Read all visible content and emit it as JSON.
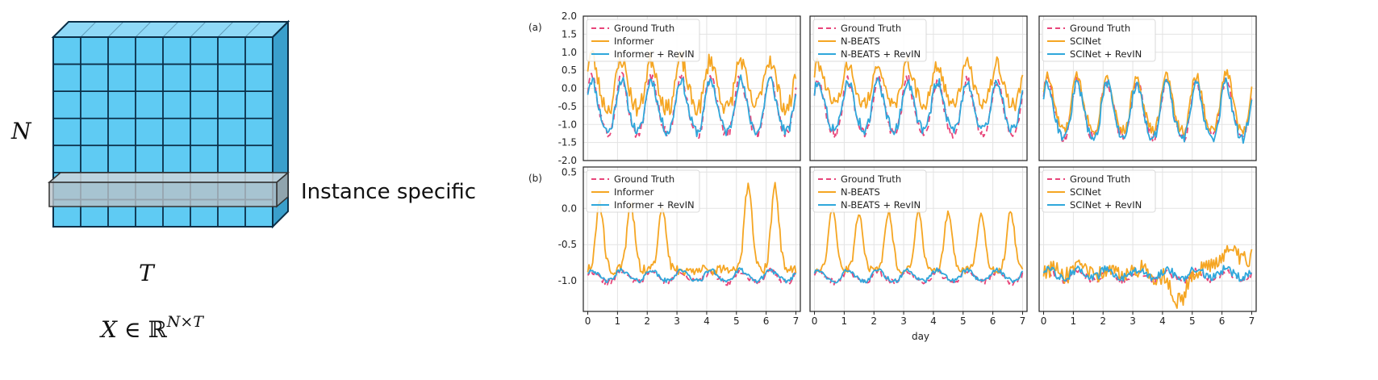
{
  "illustration": {
    "n_label": "N",
    "t_label": "T",
    "highlight_label": "Instance specific",
    "formula_x": "X ∈ ",
    "formula_r": "ℝ",
    "formula_sup": "N×T",
    "colors": {
      "front": "#5fcbf3",
      "top": "#8fd9f7",
      "side": "#3a9fcc",
      "grid": "#0b2f48",
      "slab": "#b9c2c8"
    }
  },
  "chart_data": {
    "type": "line",
    "xlabel": "day",
    "colors": {
      "ground_truth": "#e8457a",
      "model": "#f5a623",
      "revin": "#2fa7db"
    },
    "rows": [
      {
        "panel_label": "(a)",
        "ylim": [
          -2.0,
          2.0
        ],
        "yticks": [
          2.0,
          1.5,
          1.0,
          0.5,
          0.0,
          -0.5,
          -1.0,
          -1.5,
          -2.0
        ],
        "ytick_labels": [
          "2.0",
          "1.5",
          "1.0",
          "0.5",
          "0.0",
          "-0.5",
          "-1.0",
          "-1.5",
          "-2.0"
        ],
        "panels": [
          {
            "legend": [
              "Ground Truth",
              "Informer",
              "Informer + RevIN"
            ],
            "ground_truth": {
              "base": -0.55,
              "amp": 1.05,
              "noise": 0.15
            },
            "model": {
              "base": 0.05,
              "amp": 0.9,
              "noise": 0.25,
              "peaks": [
                [
                  5.85,
                  1.1
                ],
                [
                  0.1,
                  0.9
                ]
              ]
            },
            "revin": {
              "base": -0.55,
              "amp": 0.95,
              "noise": 0.15
            }
          },
          {
            "legend": [
              "Ground Truth",
              "N-BEATS",
              "N-BEATS + RevIN"
            ],
            "ground_truth": {
              "base": -0.6,
              "amp": 1.0,
              "noise": 0.15
            },
            "model": {
              "base": 0.05,
              "amp": 0.75,
              "noise": 0.2,
              "peaks": []
            },
            "revin": {
              "base": -0.55,
              "amp": 0.9,
              "noise": 0.15
            }
          },
          {
            "legend": [
              "Ground Truth",
              "SCINet",
              "SCINet + RevIN"
            ],
            "ground_truth": {
              "base": -0.65,
              "amp": 1.05,
              "noise": 0.15
            },
            "model": {
              "base": -0.5,
              "amp": 1.0,
              "noise": 0.15,
              "peaks": [
                [
                  6.3,
                  0.55
                ]
              ]
            },
            "revin": {
              "base": -0.7,
              "amp": 1.0,
              "noise": 0.15
            }
          }
        ]
      },
      {
        "panel_label": "(b)",
        "ylim": [
          -1.42,
          0.57
        ],
        "yticks": [
          0.5,
          0.0,
          -0.5,
          -1.0
        ],
        "ytick_labels": [
          "0.5",
          "0.0",
          "-0.5",
          "-1.0"
        ],
        "panels": [
          {
            "legend": [
              "Ground Truth",
              "Informer",
              "Informer + RevIN"
            ],
            "ground_truth": {
              "base": -0.95,
              "amp": 0.1,
              "noise": 0.04
            },
            "model": {
              "spiky": true,
              "peaks": [
                [
                  0.4,
                  0.05
                ],
                [
                  1.45,
                  0.05
                ],
                [
                  2.5,
                  0.05
                ],
                [
                  5.4,
                  0.35
                ],
                [
                  6.3,
                  0.3
                ]
              ],
              "base": -0.85,
              "noise": 0.07
            },
            "revin": {
              "base": -0.93,
              "amp": 0.1,
              "noise": 0.03
            }
          },
          {
            "legend": [
              "Ground Truth",
              "N-BEATS",
              "N-BEATS + RevIN"
            ],
            "ground_truth": {
              "base": -0.95,
              "amp": 0.1,
              "noise": 0.04
            },
            "model": {
              "spiky": true,
              "peaks": [
                [
                  0.6,
                  0.0
                ],
                [
                  1.5,
                  -0.05
                ],
                [
                  2.5,
                  -0.05
                ],
                [
                  3.5,
                  -0.05
                ],
                [
                  4.5,
                  -0.05
                ],
                [
                  5.6,
                  -0.05
                ],
                [
                  6.6,
                  -0.05
                ]
              ],
              "base": -0.85,
              "noise": 0.05
            },
            "revin": {
              "base": -0.93,
              "amp": 0.1,
              "noise": 0.03
            }
          },
          {
            "legend": [
              "Ground Truth",
              "SCINet",
              "SCINet + RevIN"
            ],
            "ground_truth": {
              "base": -0.93,
              "amp": 0.08,
              "noise": 0.05
            },
            "model": {
              "noisy": true,
              "base": -0.88,
              "noise": 0.12,
              "dip": [
                4.5,
                -1.35
              ],
              "rise": [
                6.0,
                -0.6
              ]
            },
            "revin": {
              "base": -0.9,
              "amp": 0.08,
              "noise": 0.06
            }
          }
        ]
      }
    ],
    "xticks": [
      0,
      1,
      2,
      3,
      4,
      5,
      6,
      7
    ],
    "xtick_labels": [
      "0",
      "1",
      "2",
      "3",
      "4",
      "5",
      "6",
      "7"
    ],
    "xlim": [
      -0.15,
      7.15
    ]
  }
}
